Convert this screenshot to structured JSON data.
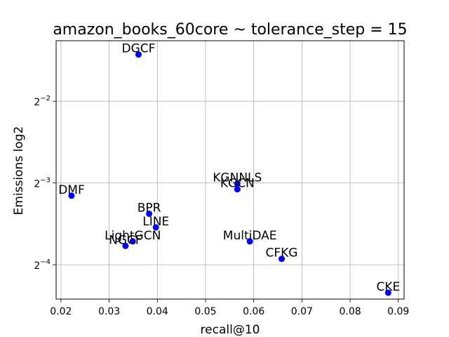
{
  "chart_data": {
    "type": "scatter",
    "title": "amazon_books_60core ~ tolerance_step = 15",
    "xlabel": "recall@10",
    "ylabel": "Emissions log2",
    "xlim": [
      0.019,
      0.0912
    ],
    "ylim_log2": [
      -4.42,
      -1.26
    ],
    "y_scale": "log2",
    "grid": true,
    "marker_color": "#0000ff",
    "x_ticks": [
      {
        "value": 0.02,
        "label": "0.02"
      },
      {
        "value": 0.03,
        "label": "0.03"
      },
      {
        "value": 0.04,
        "label": "0.04"
      },
      {
        "value": 0.05,
        "label": "0.05"
      },
      {
        "value": 0.06,
        "label": "0.06"
      },
      {
        "value": 0.07,
        "label": "0.07"
      },
      {
        "value": 0.08,
        "label": "0.08"
      },
      {
        "value": 0.09,
        "label": "0.09"
      }
    ],
    "y_ticks": [
      {
        "exp": -2,
        "base": "2",
        "sup": "−2"
      },
      {
        "exp": -3,
        "base": "2",
        "sup": "−3"
      },
      {
        "exp": -4,
        "base": "2",
        "sup": "−4"
      }
    ],
    "points": [
      {
        "label": "DGCF",
        "x": 0.0361,
        "y": 0.3713
      },
      {
        "label": "DMF",
        "x": 0.0222,
        "y": 0.1122
      },
      {
        "label": "BPR",
        "x": 0.0383,
        "y": 0.0963
      },
      {
        "label": "LINE",
        "x": 0.0397,
        "y": 0.0858
      },
      {
        "label": "LightGCN",
        "x": 0.0349,
        "y": 0.0762
      },
      {
        "label": "NGCF",
        "x": 0.0334,
        "y": 0.0733
      },
      {
        "label": "KGNNLS",
        "x": 0.0566,
        "y": 0.1244
      },
      {
        "label": "KGCN",
        "x": 0.0566,
        "y": 0.1185
      },
      {
        "label": "MultiDAE",
        "x": 0.0592,
        "y": 0.0762
      },
      {
        "label": "CFKG",
        "x": 0.0658,
        "y": 0.0657
      },
      {
        "label": "CKE",
        "x": 0.0879,
        "y": 0.0493
      }
    ]
  }
}
